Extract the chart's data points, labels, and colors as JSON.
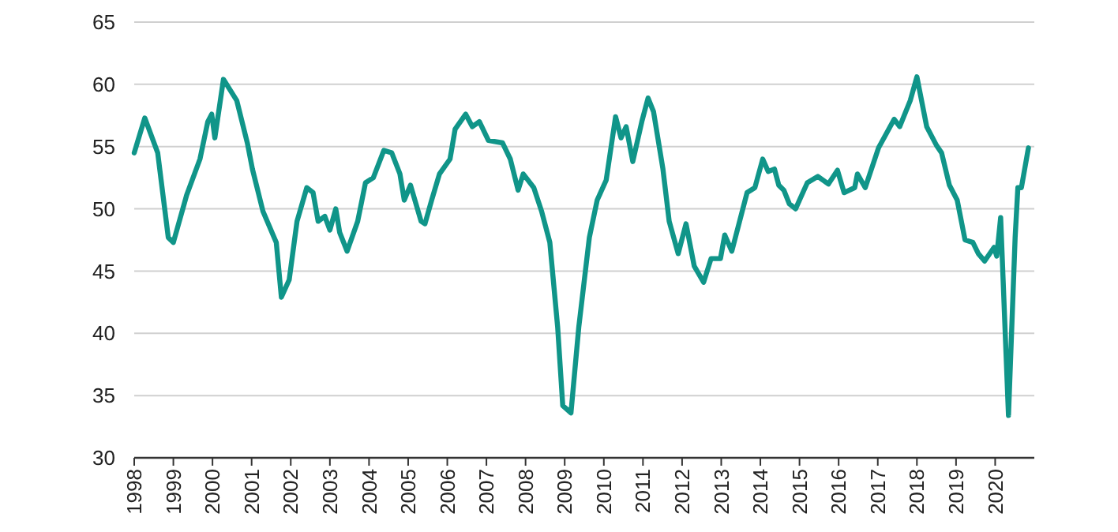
{
  "chart_data": {
    "type": "line",
    "xlim": [
      1998,
      2021
    ],
    "xticks": [
      1998,
      1999,
      2000,
      2001,
      2002,
      2003,
      2004,
      2005,
      2006,
      2007,
      2008,
      2009,
      2010,
      2011,
      2012,
      2013,
      2014,
      2015,
      2016,
      2017,
      2018,
      2019,
      2020
    ],
    "ylim": [
      30,
      65
    ],
    "yticks": [
      30,
      35,
      40,
      45,
      50,
      55,
      60,
      65
    ],
    "grid": "y",
    "marker": "none",
    "line_style": "solid",
    "series": [
      {
        "color": "#109589",
        "x": [
          1998.0,
          1998.27,
          1998.6,
          1998.87,
          1999.0,
          1999.34,
          1999.68,
          1999.88,
          1999.98,
          2000.06,
          2000.28,
          2000.62,
          2000.89,
          2001.02,
          2001.29,
          2001.63,
          2001.76,
          2001.96,
          2002.16,
          2002.41,
          2002.57,
          2002.7,
          2002.87,
          2003.0,
          2003.15,
          2003.25,
          2003.44,
          2003.71,
          2003.91,
          2004.11,
          2004.38,
          2004.58,
          2004.79,
          2004.9,
          2005.06,
          2005.33,
          2005.43,
          2005.6,
          2005.8,
          2006.07,
          2006.2,
          2006.47,
          2006.64,
          2006.82,
          2007.05,
          2007.41,
          2007.61,
          2007.81,
          2007.94,
          2008.21,
          2008.41,
          2008.62,
          2008.82,
          2008.95,
          2009.16,
          2009.36,
          2009.63,
          2009.83,
          2010.06,
          2010.3,
          2010.44,
          2010.57,
          2010.74,
          2010.97,
          2011.13,
          2011.27,
          2011.51,
          2011.67,
          2011.9,
          2012.1,
          2012.31,
          2012.55,
          2012.74,
          2012.98,
          2013.09,
          2013.27,
          2013.66,
          2013.86,
          2014.06,
          2014.2,
          2014.36,
          2014.47,
          2014.6,
          2014.74,
          2014.9,
          2015.2,
          2015.47,
          2015.74,
          2015.97,
          2016.14,
          2016.41,
          2016.48,
          2016.68,
          2017.02,
          2017.42,
          2017.56,
          2017.83,
          2018.0,
          2018.25,
          2018.5,
          2018.63,
          2018.83,
          2019.03,
          2019.23,
          2019.43,
          2019.57,
          2019.73,
          2019.97,
          2020.04,
          2020.14,
          2020.34,
          2020.51,
          2020.58,
          2020.67,
          2020.85
        ],
        "values": [
          54.5,
          57.3,
          54.5,
          47.7,
          47.3,
          51.1,
          54.0,
          57.0,
          57.6,
          55.7,
          60.4,
          58.7,
          55.3,
          53.2,
          49.8,
          47.3,
          42.9,
          44.3,
          49.0,
          51.7,
          51.3,
          49.0,
          49.4,
          48.3,
          50.0,
          48.1,
          46.6,
          49.0,
          52.1,
          52.5,
          54.7,
          54.5,
          52.8,
          50.7,
          51.9,
          49.0,
          48.8,
          50.7,
          52.8,
          54.0,
          56.4,
          57.6,
          56.6,
          57.0,
          55.5,
          55.3,
          54.0,
          51.5,
          52.8,
          51.7,
          49.8,
          47.3,
          40.5,
          34.2,
          33.6,
          40.5,
          47.7,
          50.7,
          52.3,
          57.4,
          55.7,
          56.6,
          53.8,
          57.0,
          58.9,
          57.8,
          53.2,
          49.0,
          46.4,
          48.8,
          45.4,
          44.1,
          46.0,
          46.0,
          47.9,
          46.6,
          51.3,
          51.7,
          54.0,
          53.0,
          53.2,
          51.9,
          51.5,
          50.4,
          50.0,
          52.1,
          52.6,
          52.0,
          53.1,
          51.3,
          51.7,
          52.8,
          51.7,
          54.9,
          57.2,
          56.6,
          58.7,
          60.6,
          56.6,
          55.1,
          54.5,
          51.9,
          50.7,
          47.5,
          47.3,
          46.4,
          45.8,
          46.9,
          46.2,
          49.3,
          33.4,
          47.7,
          51.7,
          51.7,
          54.9
        ]
      }
    ]
  }
}
